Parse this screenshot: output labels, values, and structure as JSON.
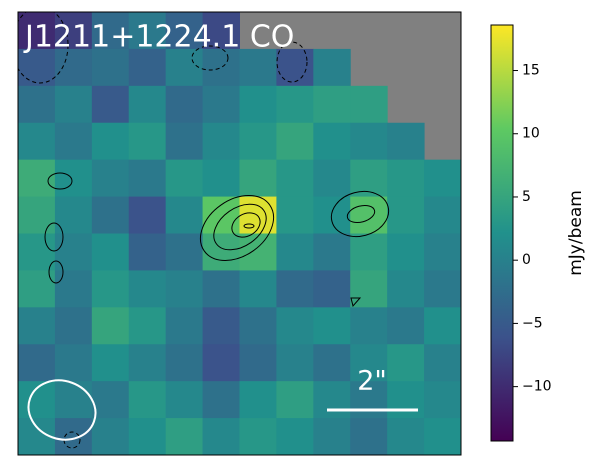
{
  "chart_data": {
    "type": "image",
    "title": "J1211+1224.1 CO",
    "colorbar_label": "mJy/beam",
    "scalebar_label": "2\"",
    "clim": [
      -14.3,
      18.6
    ],
    "colorbar_ticks": [
      {
        "value": -10,
        "label": "−10"
      },
      {
        "value": -5,
        "label": "−5"
      },
      0,
      5,
      10,
      15
    ],
    "colormap": "viridis",
    "mask_color": "#808080",
    "values": [
      [
        -10,
        -8,
        -3,
        -1,
        -4,
        -7,
        null,
        null,
        null,
        null,
        null,
        null
      ],
      [
        -5,
        -3,
        -2,
        -4,
        0,
        -2,
        -1,
        -6,
        0,
        null,
        null,
        null
      ],
      [
        -2,
        0,
        -5,
        1,
        -3,
        -1,
        2,
        3,
        4,
        4,
        null,
        null
      ],
      [
        1,
        -1,
        2,
        3,
        -2,
        1,
        3,
        5,
        2,
        1,
        0,
        null
      ],
      [
        6,
        2,
        0,
        -1,
        3,
        2,
        5,
        3,
        1,
        4,
        3,
        2
      ],
      [
        5,
        1,
        -2,
        -6,
        1,
        10,
        17,
        3,
        2,
        9,
        3,
        1
      ],
      [
        3,
        0,
        2,
        -4,
        -2,
        6,
        7,
        1,
        -1,
        4,
        2,
        0
      ],
      [
        4,
        -1,
        3,
        1,
        0,
        -2,
        1,
        -3,
        -4,
        5,
        1,
        -1
      ],
      [
        0,
        -2,
        5,
        3,
        -1,
        -5,
        -2,
        1,
        2,
        0,
        -1,
        2
      ],
      [
        -3,
        -1,
        2,
        0,
        -2,
        -6,
        -3,
        0,
        -2,
        1,
        3,
        0
      ],
      [
        2,
        0,
        -1,
        3,
        1,
        -2,
        2,
        4,
        1,
        -1,
        2,
        1
      ],
      [
        1,
        -3,
        0,
        2,
        4,
        1,
        3,
        2,
        0,
        -2,
        1,
        2
      ]
    ]
  }
}
